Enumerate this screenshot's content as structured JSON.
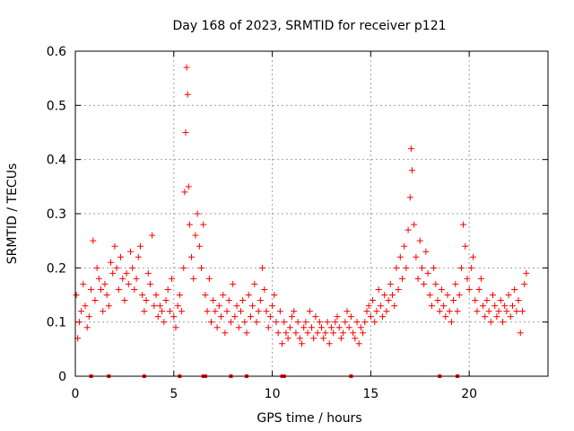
{
  "chart_data": {
    "type": "scatter",
    "title": "Day 168 of 2023, SRMTID for receiver p121",
    "xlabel": "GPS time / hours",
    "ylabel": "SRMTID / TECUs",
    "xlim": [
      0,
      24
    ],
    "ylim": [
      0,
      0.6
    ],
    "x_ticks": [
      0,
      5,
      10,
      15,
      20
    ],
    "x_tick_labels": [
      "0",
      "5",
      "10",
      "15",
      "20"
    ],
    "y_ticks": [
      0,
      0.1,
      0.2,
      0.3,
      0.4,
      0.5,
      0.6
    ],
    "y_tick_labels": [
      "0",
      "0.1",
      "0.2",
      "0.3",
      "0.4",
      "0.5",
      "0.6"
    ],
    "grid": true,
    "marker": "+",
    "color": "#ff0000",
    "series": [
      {
        "name": "SRMTID",
        "x": [
          0.05,
          0.12,
          0.2,
          0.3,
          0.4,
          0.5,
          0.6,
          0.7,
          0.8,
          0.9,
          1.0,
          1.1,
          1.2,
          1.3,
          1.4,
          1.5,
          1.6,
          1.7,
          1.8,
          1.9,
          2.0,
          2.1,
          2.2,
          2.3,
          2.4,
          2.5,
          2.6,
          2.7,
          2.8,
          2.9,
          3.0,
          3.1,
          3.2,
          3.3,
          3.4,
          3.5,
          3.6,
          3.7,
          3.8,
          3.9,
          4.0,
          4.1,
          4.2,
          4.3,
          4.4,
          4.5,
          4.6,
          4.7,
          4.8,
          4.9,
          5.0,
          5.1,
          5.2,
          5.3,
          5.4,
          5.5,
          5.55,
          5.6,
          5.65,
          5.7,
          5.75,
          5.8,
          5.9,
          6.0,
          6.1,
          6.2,
          6.3,
          6.4,
          6.5,
          6.6,
          6.7,
          6.8,
          6.9,
          7.0,
          7.1,
          7.2,
          7.3,
          7.4,
          7.5,
          7.6,
          7.7,
          7.8,
          7.9,
          8.0,
          8.1,
          8.2,
          8.3,
          8.4,
          8.5,
          8.6,
          8.7,
          8.8,
          8.9,
          9.0,
          9.1,
          9.2,
          9.3,
          9.4,
          9.5,
          9.6,
          9.7,
          9.8,
          9.9,
          10.0,
          10.1,
          10.2,
          10.3,
          10.4,
          10.5,
          10.6,
          10.7,
          10.8,
          10.9,
          11.0,
          11.1,
          11.2,
          11.3,
          11.4,
          11.5,
          11.6,
          11.7,
          11.8,
          11.9,
          12.0,
          12.1,
          12.2,
          12.3,
          12.4,
          12.5,
          12.6,
          12.7,
          12.8,
          12.9,
          13.0,
          13.1,
          13.2,
          13.3,
          13.4,
          13.5,
          13.6,
          13.7,
          13.8,
          13.9,
          14.0,
          14.1,
          14.2,
          14.3,
          14.4,
          14.5,
          14.6,
          14.7,
          14.8,
          14.9,
          15.0,
          15.1,
          15.2,
          15.3,
          15.4,
          15.5,
          15.6,
          15.7,
          15.8,
          15.9,
          16.0,
          16.1,
          16.2,
          16.3,
          16.4,
          16.5,
          16.6,
          16.7,
          16.8,
          16.9,
          17.0,
          17.05,
          17.1,
          17.2,
          17.3,
          17.4,
          17.5,
          17.6,
          17.7,
          17.8,
          17.9,
          18.0,
          18.1,
          18.2,
          18.3,
          18.4,
          18.5,
          18.6,
          18.7,
          18.8,
          18.9,
          19.0,
          19.1,
          19.2,
          19.3,
          19.4,
          19.5,
          19.6,
          19.7,
          19.8,
          19.9,
          20.0,
          20.1,
          20.2,
          20.3,
          20.4,
          20.5,
          20.6,
          20.7,
          20.8,
          20.9,
          21.0,
          21.1,
          21.2,
          21.3,
          21.4,
          21.5,
          21.6,
          21.7,
          21.8,
          21.9,
          22.0,
          22.1,
          22.2,
          22.3,
          22.4,
          22.5,
          22.6,
          22.7,
          22.8,
          22.9
        ],
        "y": [
          0.15,
          0.07,
          0.1,
          0.12,
          0.17,
          0.13,
          0.09,
          0.11,
          0.16,
          0.25,
          0.14,
          0.2,
          0.18,
          0.16,
          0.12,
          0.17,
          0.15,
          0.13,
          0.21,
          0.19,
          0.24,
          0.2,
          0.16,
          0.22,
          0.18,
          0.14,
          0.19,
          0.17,
          0.23,
          0.2,
          0.16,
          0.18,
          0.22,
          0.24,
          0.15,
          0.12,
          0.14,
          0.19,
          0.17,
          0.26,
          0.13,
          0.15,
          0.11,
          0.13,
          0.12,
          0.1,
          0.14,
          0.16,
          0.12,
          0.18,
          0.11,
          0.09,
          0.13,
          0.15,
          0.12,
          0.2,
          0.34,
          0.45,
          0.57,
          0.52,
          0.35,
          0.28,
          0.22,
          0.18,
          0.26,
          0.3,
          0.24,
          0.2,
          0.28,
          0.15,
          0.12,
          0.18,
          0.1,
          0.14,
          0.12,
          0.09,
          0.13,
          0.11,
          0.15,
          0.08,
          0.12,
          0.14,
          0.1,
          0.17,
          0.11,
          0.13,
          0.09,
          0.12,
          0.14,
          0.1,
          0.08,
          0.15,
          0.11,
          0.13,
          0.17,
          0.1,
          0.12,
          0.14,
          0.2,
          0.16,
          0.12,
          0.09,
          0.11,
          0.13,
          0.15,
          0.1,
          0.08,
          0.12,
          0.06,
          0.1,
          0.08,
          0.07,
          0.09,
          0.11,
          0.12,
          0.08,
          0.1,
          0.07,
          0.06,
          0.09,
          0.1,
          0.08,
          0.12,
          0.09,
          0.07,
          0.11,
          0.08,
          0.1,
          0.09,
          0.07,
          0.08,
          0.1,
          0.06,
          0.09,
          0.08,
          0.1,
          0.11,
          0.09,
          0.07,
          0.08,
          0.1,
          0.12,
          0.09,
          0.11,
          0.08,
          0.07,
          0.1,
          0.06,
          0.09,
          0.08,
          0.1,
          0.12,
          0.13,
          0.11,
          0.14,
          0.1,
          0.12,
          0.16,
          0.13,
          0.11,
          0.15,
          0.12,
          0.14,
          0.17,
          0.15,
          0.13,
          0.2,
          0.16,
          0.22,
          0.18,
          0.24,
          0.2,
          0.27,
          0.33,
          0.42,
          0.38,
          0.28,
          0.22,
          0.18,
          0.25,
          0.2,
          0.17,
          0.23,
          0.19,
          0.15,
          0.13,
          0.2,
          0.17,
          0.14,
          0.12,
          0.16,
          0.13,
          0.11,
          0.15,
          0.12,
          0.1,
          0.14,
          0.17,
          0.12,
          0.15,
          0.2,
          0.28,
          0.24,
          0.18,
          0.16,
          0.2,
          0.22,
          0.14,
          0.12,
          0.16,
          0.18,
          0.13,
          0.11,
          0.14,
          0.12,
          0.1,
          0.15,
          0.13,
          0.11,
          0.12,
          0.14,
          0.1,
          0.13,
          0.12,
          0.15,
          0.11,
          0.13,
          0.16,
          0.12,
          0.14,
          0.08,
          0.12,
          0.17,
          0.19
        ]
      }
    ],
    "bottom_markers_x": [
      0.8,
      1.7,
      3.5,
      5.3,
      6.5,
      6.6,
      7.9,
      8.7,
      10.5,
      10.6,
      14.0,
      18.5,
      19.4
    ]
  }
}
